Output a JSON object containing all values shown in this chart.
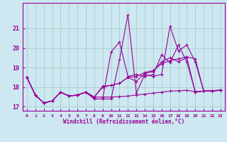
{
  "xlabel": "Windchill (Refroidissement éolien,°C)",
  "bg_color": "#cde8f0",
  "grid_color": "#a8cccc",
  "line_color": "#990099",
  "xmin": -0.5,
  "xmax": 23.5,
  "ymin": 16.8,
  "ymax": 22.3,
  "yticks": [
    17,
    18,
    19,
    20,
    21
  ],
  "xticks": [
    0,
    1,
    2,
    3,
    4,
    5,
    6,
    7,
    8,
    9,
    10,
    11,
    12,
    13,
    14,
    15,
    16,
    17,
    18,
    19,
    20,
    21,
    22,
    23
  ],
  "hours": [
    0,
    1,
    2,
    3,
    4,
    5,
    6,
    7,
    8,
    9,
    10,
    11,
    12,
    13,
    14,
    15,
    16,
    17,
    18,
    19,
    20,
    21,
    22,
    23
  ],
  "line1": [
    18.5,
    17.6,
    17.2,
    17.3,
    17.75,
    17.55,
    17.6,
    17.75,
    17.5,
    17.5,
    17.5,
    17.52,
    17.55,
    17.6,
    17.65,
    17.7,
    17.75,
    17.8,
    17.82,
    17.84,
    17.78,
    17.8,
    17.82,
    17.85
  ],
  "line2": [
    18.5,
    17.6,
    17.2,
    17.3,
    17.75,
    17.55,
    17.6,
    17.75,
    17.5,
    18.0,
    18.1,
    18.2,
    18.5,
    18.55,
    18.75,
    18.85,
    19.2,
    19.35,
    19.45,
    19.55,
    19.45,
    17.8,
    17.82,
    17.85
  ],
  "line3": [
    18.5,
    17.6,
    17.2,
    17.3,
    17.75,
    17.55,
    17.6,
    17.75,
    17.5,
    18.05,
    18.1,
    18.2,
    18.5,
    18.3,
    18.7,
    18.8,
    19.3,
    19.5,
    19.3,
    19.5,
    17.75,
    17.8,
    17.8,
    17.85
  ],
  "line4": [
    18.5,
    17.6,
    17.2,
    17.3,
    17.75,
    17.55,
    17.6,
    17.75,
    17.4,
    17.4,
    19.8,
    20.3,
    18.55,
    18.65,
    18.55,
    18.65,
    19.65,
    19.25,
    20.15,
    19.3,
    17.75,
    17.8,
    17.8,
    17.85
  ],
  "line5": [
    18.5,
    17.6,
    17.2,
    17.3,
    17.75,
    17.55,
    17.6,
    17.75,
    17.4,
    17.4,
    17.4,
    19.4,
    21.7,
    17.7,
    18.65,
    18.55,
    18.65,
    21.1,
    19.85,
    20.15,
    19.3,
    17.8,
    17.8,
    17.85
  ]
}
